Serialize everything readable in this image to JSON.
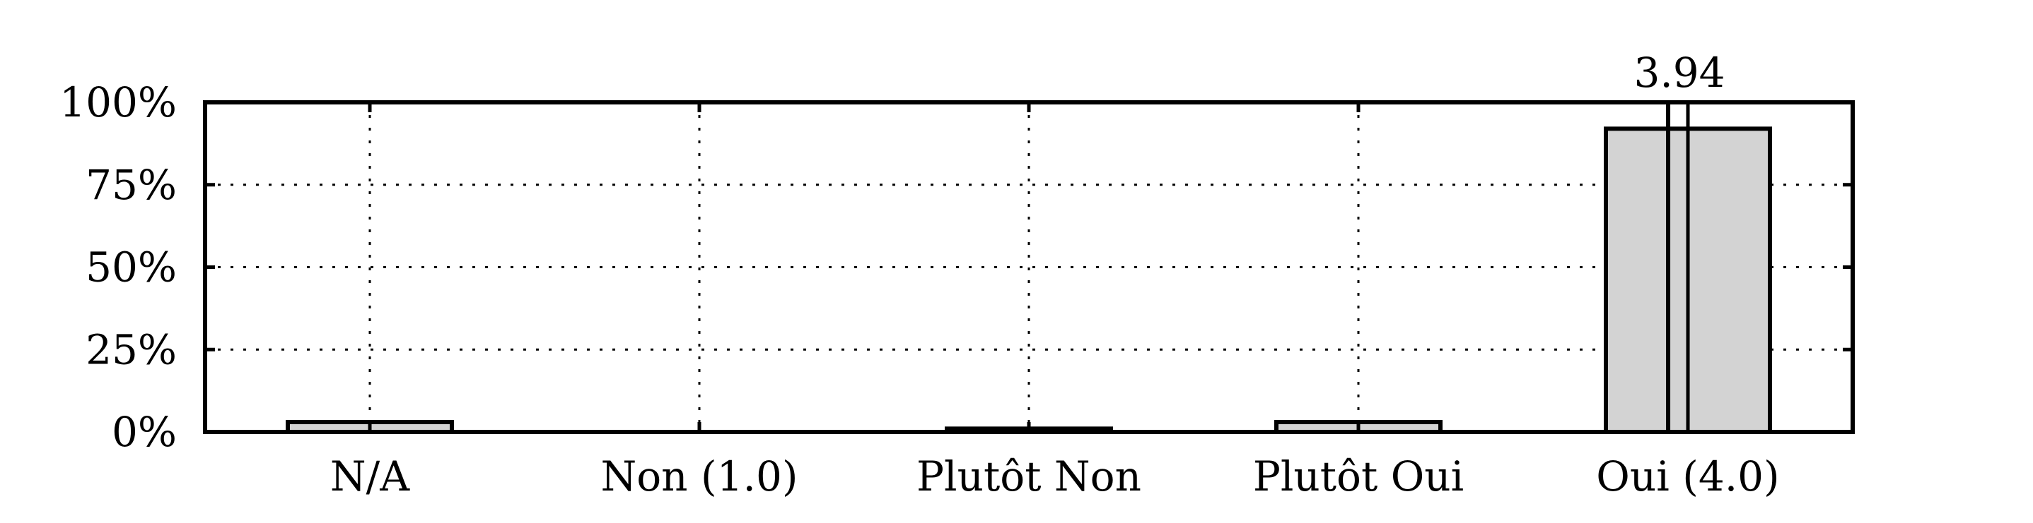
{
  "chart_data": {
    "type": "bar",
    "categories": [
      "N/A",
      "Non (1.0)",
      "Plutôt Non",
      "Plutôt Oui",
      "Oui (4.0)"
    ],
    "values": [
      3,
      0,
      1,
      3,
      92
    ],
    "ylim": [
      0,
      100
    ],
    "yticks": [
      0,
      25,
      50,
      75,
      100
    ],
    "ytick_labels": [
      "0%",
      "25%",
      "50%",
      "75%",
      "100%"
    ],
    "mean": {
      "value": 3.94,
      "label": "3.94",
      "scale_min": 1.0,
      "scale_max": 4.0
    },
    "grid": true,
    "colors": {
      "bar": "#d3d3d3",
      "stroke": "#000000"
    }
  }
}
